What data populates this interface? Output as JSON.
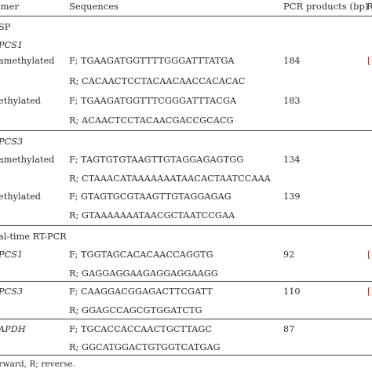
{
  "header": {
    "primer": "imer",
    "sequences": "Sequences",
    "pcr_products": "PCR products (bp)",
    "ref": "R"
  },
  "sections": {
    "bsp": "SP",
    "rt_pcr": "al-time RT-PCR"
  },
  "rows": [
    {
      "gene": "PCS1"
    },
    {
      "label": "amethylated",
      "forward": "F; TGAAGATGGTTTTGGGATTTATGA",
      "reverse": "R; CACAACTCCTACAACAACCACACAC",
      "product": "184",
      "ref": "["
    },
    {
      "label": "ethylated",
      "forward": "F; TGAAGATGGTTTCGGGATTTACGA",
      "reverse": "R; ACAACTCCTACAACGACCGCACG",
      "product": "183"
    },
    {
      "gene": "PCS3"
    },
    {
      "label": "amethylated",
      "forward": "F; TAGTGTGTAAGTTGTAGGAGAGTGG",
      "reverse": "R; CTAAACATAAAAAAATAACACTAATCCAAA",
      "product": "134"
    },
    {
      "label": "ethylated",
      "forward": "F; GTAGTGCGTAAGTTGTAGGAGAG",
      "reverse": "R; GTAAAAAAATAACGCTAATCCGAA",
      "product": "139"
    },
    {
      "gene": "PCS1",
      "forward": "F; TGGTAGCACACAACCAGGTG",
      "reverse": "R; GAGGAGGAAGAGGAGGAAGG",
      "product": "92",
      "ref": "["
    },
    {
      "gene": "PCS3",
      "forward": "F; CAAGGACGGAGACTTCGATT",
      "reverse": "R; GGAGCCAGCGTGGATCTG",
      "product": "110",
      "ref": "["
    },
    {
      "gene": "APDH",
      "forward": "F; TGCACCACCAACTGCTTAGC",
      "reverse": "R; GGCATGGACTGTGGTCATGAG",
      "product": "87"
    }
  ],
  "footnote": "orward, R; reverse.",
  "colors": {
    "text": "#2a2a2a",
    "rule": "#444444",
    "ref_link": "#c0392b"
  }
}
